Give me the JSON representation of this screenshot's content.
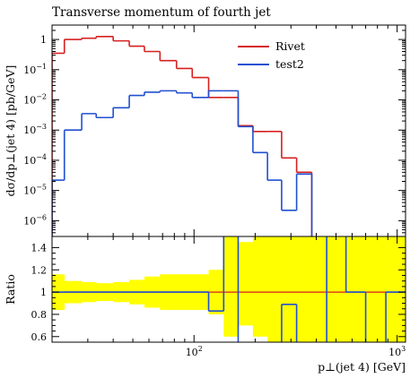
{
  "chart_data": {
    "type": "step-histogram",
    "title": "Transverse momentum of fourth jet",
    "xlabel": "p⊥(jet 4) [GeV]",
    "ylabel_main": "dσ/dp⊥(jet 4) [pb/GeV]",
    "ylabel_ratio": "Ratio",
    "x_scale": "log",
    "y_scale_main": "log",
    "xlim": [
      20,
      1100
    ],
    "ylim_main": [
      3e-07,
      3
    ],
    "ylim_ratio": [
      0.55,
      1.5
    ],
    "x_tick_labels": [
      {
        "value": 100,
        "base": "10",
        "exp": "2"
      },
      {
        "value": 1000,
        "base": "10",
        "exp": "3"
      }
    ],
    "y_tick_labels_main": [
      {
        "value": 1,
        "text": "1"
      },
      {
        "value": 0.1,
        "base": "10",
        "exp": "−1"
      },
      {
        "value": 0.01,
        "base": "10",
        "exp": "−2"
      },
      {
        "value": 0.001,
        "base": "10",
        "exp": "−3"
      },
      {
        "value": 0.0001,
        "base": "10",
        "exp": "−4"
      },
      {
        "value": 1e-05,
        "base": "10",
        "exp": "−5"
      },
      {
        "value": 1e-06,
        "base": "10",
        "exp": "−6"
      }
    ],
    "y_tick_labels_ratio": [
      "0.6",
      "0.8",
      "1",
      "1.2",
      "1.4"
    ],
    "legend_position": "top-right",
    "bin_edges": [
      20,
      23,
      28,
      33,
      40,
      48,
      57,
      68,
      82,
      98,
      118,
      140,
      165,
      195,
      230,
      270,
      320,
      380,
      450,
      560,
      700,
      880,
      1100
    ],
    "series": [
      {
        "name": "Rivet",
        "color": "#d62020",
        "values": [
          0.35,
          1.0,
          1.1,
          1.25,
          0.9,
          0.6,
          0.4,
          0.2,
          0.11,
          0.055,
          0.012,
          0.012,
          0.0014,
          0.0009,
          0.0009,
          0.00012,
          4e-05,
          null,
          null,
          null,
          null,
          null
        ]
      },
      {
        "name": "test2",
        "color": "#2050d0",
        "values": [
          2.2e-05,
          0.001,
          0.0035,
          0.0026,
          0.0055,
          0.014,
          0.018,
          0.02,
          0.017,
          0.012,
          0.02,
          0.02,
          0.0013,
          0.00018,
          2.2e-05,
          2.2e-06,
          3.5e-05,
          null,
          null,
          null,
          null,
          null
        ]
      }
    ],
    "ratio": {
      "reference_line": 1.0,
      "band_color": "#ffff00",
      "band": [
        [
          0.84,
          1.16
        ],
        [
          0.9,
          1.1
        ],
        [
          0.91,
          1.09
        ],
        [
          0.92,
          1.08
        ],
        [
          0.91,
          1.09
        ],
        [
          0.89,
          1.11
        ],
        [
          0.86,
          1.14
        ],
        [
          0.84,
          1.16
        ],
        [
          0.84,
          1.16
        ],
        [
          0.84,
          1.16
        ],
        [
          0.8,
          1.2
        ],
        [
          0.6,
          1.5
        ],
        [
          0.7,
          1.45
        ],
        [
          0.6,
          1.5
        ],
        [
          0.55,
          1.5
        ],
        [
          0.55,
          1.5
        ],
        [
          0.55,
          1.5
        ],
        [
          0.55,
          1.5
        ],
        [
          0.55,
          1.5
        ],
        [
          0.55,
          1.5
        ],
        [
          0.55,
          1.5
        ],
        [
          0.55,
          1.5
        ]
      ],
      "test2_values": [
        1.0,
        1.0,
        1.0,
        1.0,
        1.0,
        1.0,
        1.0,
        1.0,
        1.0,
        1.0,
        0.83,
        2.0,
        0.4,
        0.4,
        0.4,
        0.89,
        0.4,
        0.4,
        2.0,
        1.0,
        0.4,
        1.0
      ]
    }
  }
}
